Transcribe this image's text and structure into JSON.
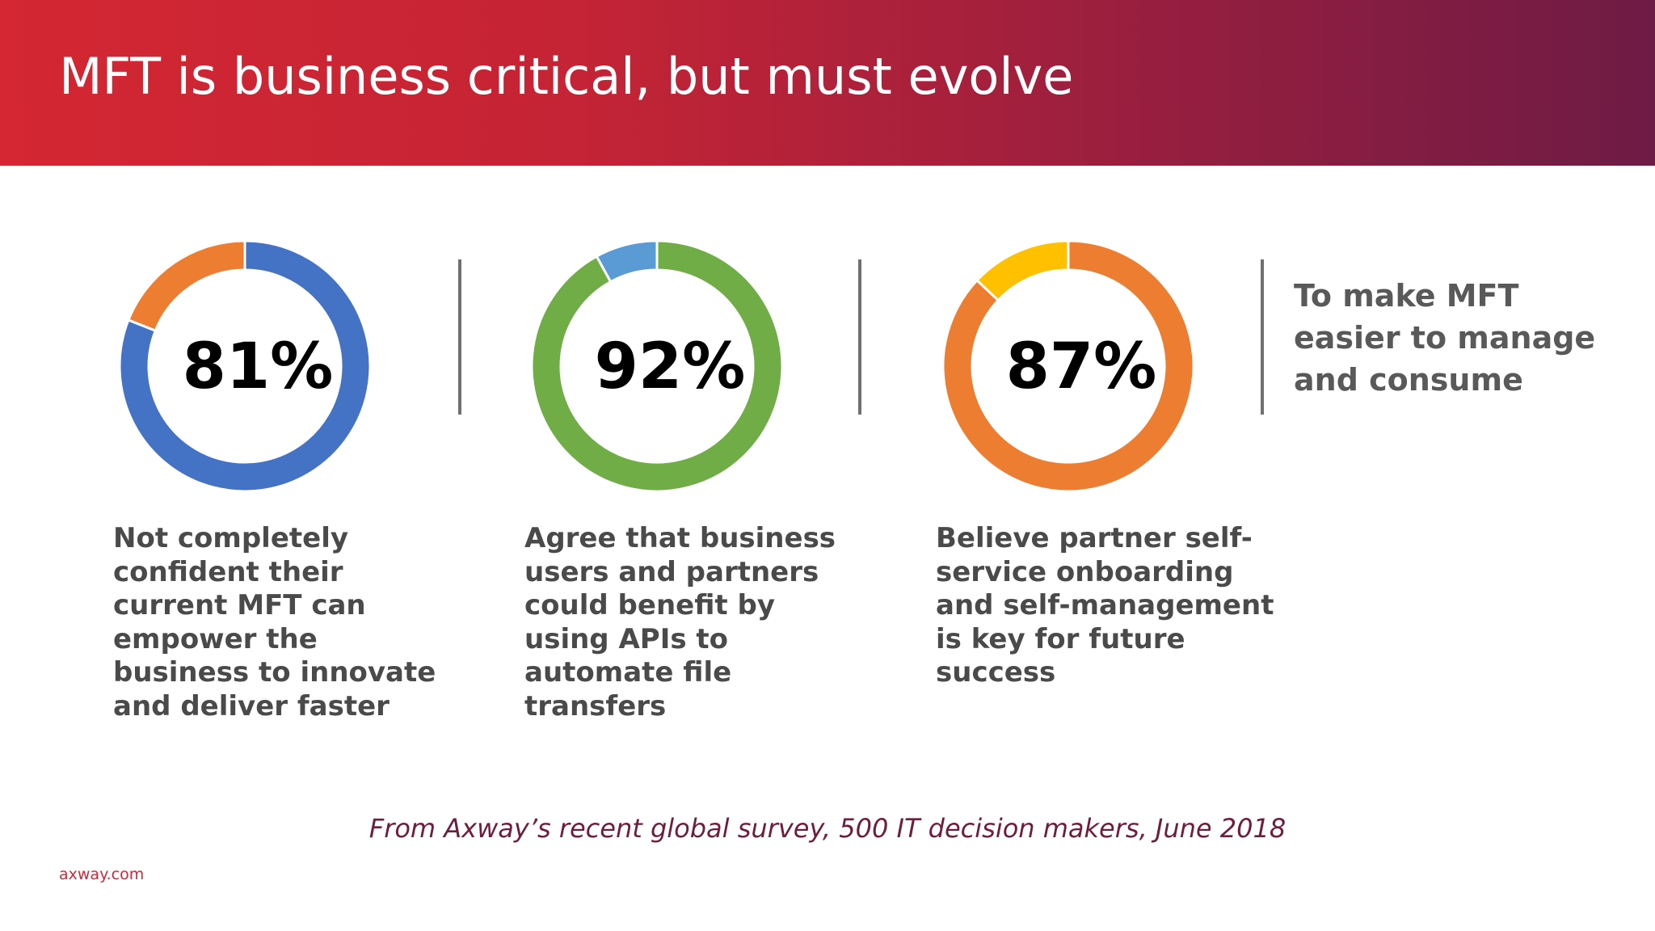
{
  "header": {
    "title": "MFT is business critical, but must evolve"
  },
  "chart_data": [
    {
      "type": "pie",
      "labels": [
        "",
        ""
      ],
      "values": [
        81,
        19
      ],
      "colors": [
        "#4472c4",
        "#ed7d31"
      ],
      "center_label": "81%",
      "caption": "Not completely confident their current MFT can empower the business to innovate and deliver faster"
    },
    {
      "type": "pie",
      "labels": [
        "",
        ""
      ],
      "values": [
        92,
        8
      ],
      "colors": [
        "#70ad47",
        "#5b9bd5"
      ],
      "center_label": "92%",
      "caption": "Agree that business users and partners could benefit by using APIs to automate file transfers"
    },
    {
      "type": "pie",
      "labels": [
        "",
        ""
      ],
      "values": [
        87,
        13
      ],
      "colors": [
        "#ed7d31",
        "#ffc000"
      ],
      "center_label": "87%",
      "caption": "Believe partner self-service onboarding and self-management is key for future success"
    }
  ],
  "side_note": "To make MFT easier to manage and consume",
  "source": "From Axway’s recent global survey, 500 IT decision makers, June 2018",
  "footer": {
    "logo_text": "axway.com"
  }
}
